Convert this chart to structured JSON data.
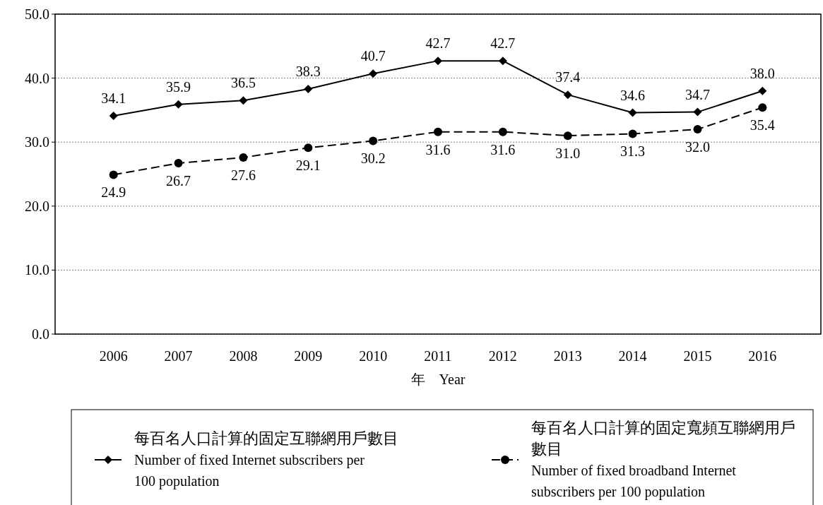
{
  "chart_data": {
    "type": "line",
    "xlabel": "年　Year",
    "categories": [
      "2006",
      "2007",
      "2008",
      "2009",
      "2010",
      "2011",
      "2012",
      "2013",
      "2014",
      "2015",
      "2016"
    ],
    "series": [
      {
        "name": "每百名人口計算的固定互聯網用戶數目 Number of fixed Internet subscribers per 100 population",
        "color": "#000000",
        "marker": "diamond",
        "line_style": "solid",
        "values": [
          34.1,
          35.9,
          36.5,
          38.3,
          40.7,
          42.7,
          42.7,
          37.4,
          34.6,
          34.7,
          38.0
        ],
        "value_labels": [
          "34.1",
          "35.9",
          "36.5",
          "38.3",
          "40.7",
          "42.7",
          "42.7",
          "37.4",
          "34.6",
          "34.7",
          "38.0"
        ]
      },
      {
        "name": "每百名人口計算的固定寬頻互聯網用戶數目 Number of fixed broadband Internet subscribers per 100 population",
        "color": "#000000",
        "marker": "circle",
        "line_style": "dashed",
        "values": [
          24.9,
          26.7,
          27.6,
          29.1,
          30.2,
          31.6,
          31.6,
          31.0,
          31.3,
          32.0,
          35.4
        ],
        "value_labels": [
          "24.9",
          "26.7",
          "27.6",
          "29.1",
          "30.2",
          "31.6",
          "31.6",
          "31.0",
          "31.3",
          "32.0",
          "35.4"
        ]
      }
    ],
    "ylim": [
      0,
      50
    ],
    "yticks": [
      {
        "value": 0,
        "label": "0.0"
      },
      {
        "value": 10,
        "label": "10.0"
      },
      {
        "value": 20,
        "label": "20.0"
      },
      {
        "value": 30,
        "label": "30.0"
      },
      {
        "value": 40,
        "label": "40.0"
      },
      {
        "value": 50,
        "label": "50.0"
      }
    ],
    "grid": "y",
    "legend": "bottom"
  }
}
